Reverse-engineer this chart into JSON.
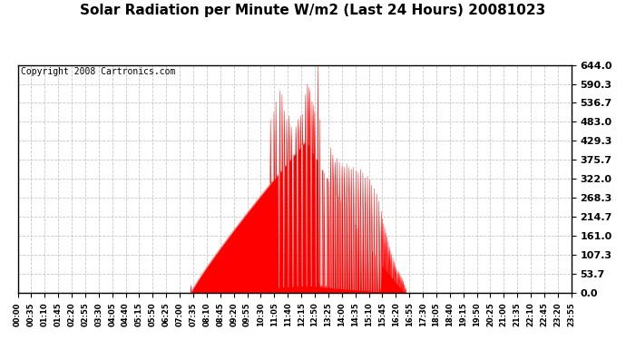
{
  "title": "Solar Radiation per Minute W/m2 (Last 24 Hours) 20081023",
  "copyright": "Copyright 2008 Cartronics.com",
  "bg_color": "#ffffff",
  "plot_bg_color": "#ffffff",
  "fill_color": "#ff0000",
  "line_color": "#ff0000",
  "dashed_line_color": "#ff0000",
  "grid_color": "#c0c0c0",
  "yticks": [
    0.0,
    53.7,
    107.3,
    161.0,
    214.7,
    268.3,
    322.0,
    375.7,
    429.3,
    483.0,
    536.7,
    590.3,
    644.0
  ],
  "ymax": 644.0,
  "ymin": 0.0,
  "xtick_labels": [
    "00:00",
    "00:35",
    "01:10",
    "01:45",
    "02:20",
    "02:55",
    "03:30",
    "04:05",
    "04:40",
    "05:15",
    "05:50",
    "06:25",
    "07:00",
    "07:35",
    "08:10",
    "08:45",
    "09:20",
    "09:55",
    "10:30",
    "11:05",
    "11:40",
    "12:15",
    "12:50",
    "13:25",
    "14:00",
    "14:35",
    "15:10",
    "15:45",
    "16:20",
    "16:55",
    "17:30",
    "18:05",
    "18:40",
    "19:15",
    "19:50",
    "20:25",
    "21:00",
    "21:35",
    "22:10",
    "22:45",
    "23:20",
    "23:55"
  ],
  "title_fontsize": 11,
  "copyright_fontsize": 7,
  "ytick_fontsize": 8,
  "xtick_fontsize": 6
}
